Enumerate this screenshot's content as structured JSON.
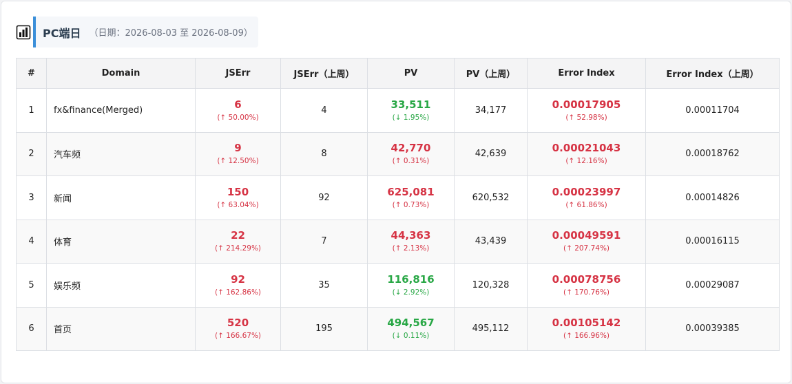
{
  "header": {
    "title": "PC端日",
    "date_range": "（日期：2026-08-03 至 2026-08-09）"
  },
  "table": {
    "columns": [
      "#",
      "Domain",
      "JSErr",
      "JSErr（上周）",
      "PV",
      "PV（上周）",
      "Error Index",
      "Error Index（上周）"
    ],
    "rows": [
      {
        "idx": "1",
        "domain": "fx&finance(Merged)",
        "jserr": "6",
        "jserr_change": "(↑ 50.00%)",
        "jserr_dir": "up",
        "jserr_prev": "4",
        "pv": "33,511",
        "pv_change": "(↓ 1.95%)",
        "pv_dir": "down",
        "pv_prev": "34,177",
        "ei": "0.00017905",
        "ei_change": "(↑ 52.98%)",
        "ei_dir": "up",
        "ei_prev": "0.00011704"
      },
      {
        "idx": "2",
        "domain": "汽车频",
        "jserr": "9",
        "jserr_change": "(↑ 12.50%)",
        "jserr_dir": "up",
        "jserr_prev": "8",
        "pv": "42,770",
        "pv_change": "(↑ 0.31%)",
        "pv_dir": "up",
        "pv_prev": "42,639",
        "ei": "0.00021043",
        "ei_change": "(↑ 12.16%)",
        "ei_dir": "up",
        "ei_prev": "0.00018762"
      },
      {
        "idx": "3",
        "domain": "新闻",
        "jserr": "150",
        "jserr_change": "(↑ 63.04%)",
        "jserr_dir": "up",
        "jserr_prev": "92",
        "pv": "625,081",
        "pv_change": "(↑ 0.73%)",
        "pv_dir": "up",
        "pv_prev": "620,532",
        "ei": "0.00023997",
        "ei_change": "(↑ 61.86%)",
        "ei_dir": "up",
        "ei_prev": "0.00014826"
      },
      {
        "idx": "4",
        "domain": "体育",
        "jserr": "22",
        "jserr_change": "(↑ 214.29%)",
        "jserr_dir": "up",
        "jserr_prev": "7",
        "pv": "44,363",
        "pv_change": "(↑ 2.13%)",
        "pv_dir": "up",
        "pv_prev": "43,439",
        "ei": "0.00049591",
        "ei_change": "(↑ 207.74%)",
        "ei_dir": "up",
        "ei_prev": "0.00016115"
      },
      {
        "idx": "5",
        "domain": "娱乐频",
        "jserr": "92",
        "jserr_change": "(↑ 162.86%)",
        "jserr_dir": "up",
        "jserr_prev": "35",
        "pv": "116,816",
        "pv_change": "(↓ 2.92%)",
        "pv_dir": "down",
        "pv_prev": "120,328",
        "ei": "0.00078756",
        "ei_change": "(↑ 170.76%)",
        "ei_dir": "up",
        "ei_prev": "0.00029087"
      },
      {
        "idx": "6",
        "domain": "首页",
        "jserr": "520",
        "jserr_change": "(↑ 166.67%)",
        "jserr_dir": "up",
        "jserr_prev": "195",
        "pv": "494,567",
        "pv_change": "(↓ 0.11%)",
        "pv_dir": "down",
        "pv_prev": "495,112",
        "ei": "0.00105142",
        "ei_change": "(↑ 166.96%)",
        "ei_dir": "up",
        "ei_prev": "0.00039385"
      }
    ]
  },
  "colors": {
    "up": "#d63344",
    "down": "#28a745",
    "accent": "#3b8fd9"
  },
  "icons": {
    "header": "chart-icon"
  }
}
